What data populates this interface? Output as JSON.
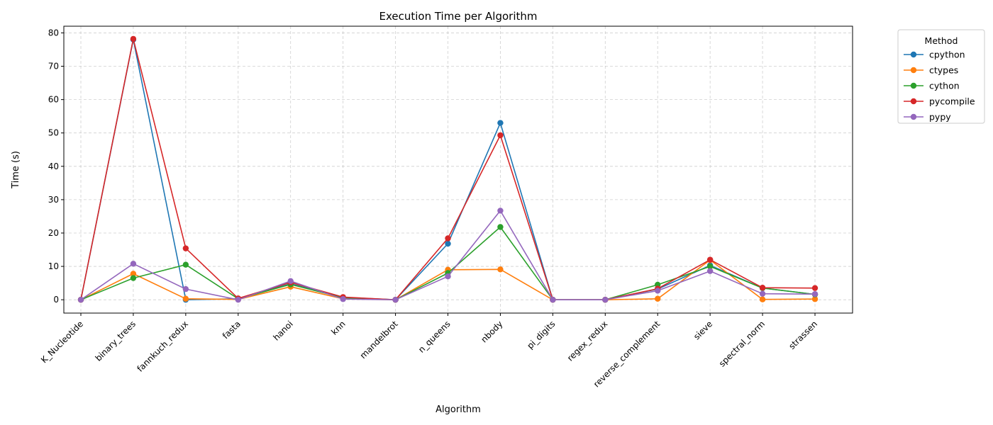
{
  "chart_data": {
    "type": "line",
    "title": "Execution Time per Algorithm",
    "xlabel": "Algorithm",
    "ylabel": "Time (s)",
    "ylim": [
      -4,
      82
    ],
    "yticks": [
      0,
      10,
      20,
      30,
      40,
      50,
      60,
      70,
      80
    ],
    "ytick_labels": [
      "0",
      "10",
      "20",
      "30",
      "40",
      "50",
      "60",
      "70",
      "80"
    ],
    "grid": true,
    "legend": {
      "title": "Method",
      "placement": "outside-top-right"
    },
    "categories": [
      "K_Nucleotide",
      "binary_trees",
      "fannkuch_redux",
      "fasta",
      "hanoi",
      "knn",
      "mandelbrot",
      "n_queens",
      "nbody",
      "pi_digits",
      "regex_redux",
      "reverse_complement",
      "sieve",
      "spectral_norm",
      "strassen"
    ],
    "series": [
      {
        "name": "cpython",
        "color": "#1f77b4",
        "values": [
          0.0,
          78.0,
          0.0,
          0.3,
          4.8,
          0.7,
          0.0,
          16.8,
          53.0,
          0.0,
          0.0,
          3.2,
          10.3,
          3.5,
          1.6
        ]
      },
      {
        "name": "ctypes",
        "color": "#ff7f0e",
        "values": [
          0.0,
          7.8,
          0.3,
          0.1,
          3.9,
          0.3,
          0.0,
          9.0,
          9.1,
          0.0,
          0.0,
          0.3,
          11.9,
          0.1,
          0.2
        ]
      },
      {
        "name": "cython",
        "color": "#2ca02c",
        "values": [
          0.0,
          6.5,
          10.5,
          0.3,
          4.6,
          0.6,
          0.0,
          8.0,
          21.8,
          0.0,
          0.0,
          4.5,
          10.0,
          3.5,
          1.6
        ]
      },
      {
        "name": "pycompile",
        "color": "#d62728",
        "values": [
          0.0,
          78.2,
          15.4,
          0.4,
          5.2,
          0.8,
          0.0,
          18.4,
          49.3,
          0.0,
          0.0,
          3.3,
          12.0,
          3.6,
          3.5
        ]
      },
      {
        "name": "pypy",
        "color": "#9467bd",
        "values": [
          0.0,
          10.8,
          3.2,
          0.0,
          5.6,
          0.2,
          0.0,
          7.0,
          26.7,
          0.0,
          0.0,
          2.7,
          8.6,
          1.8,
          1.7
        ]
      }
    ]
  }
}
